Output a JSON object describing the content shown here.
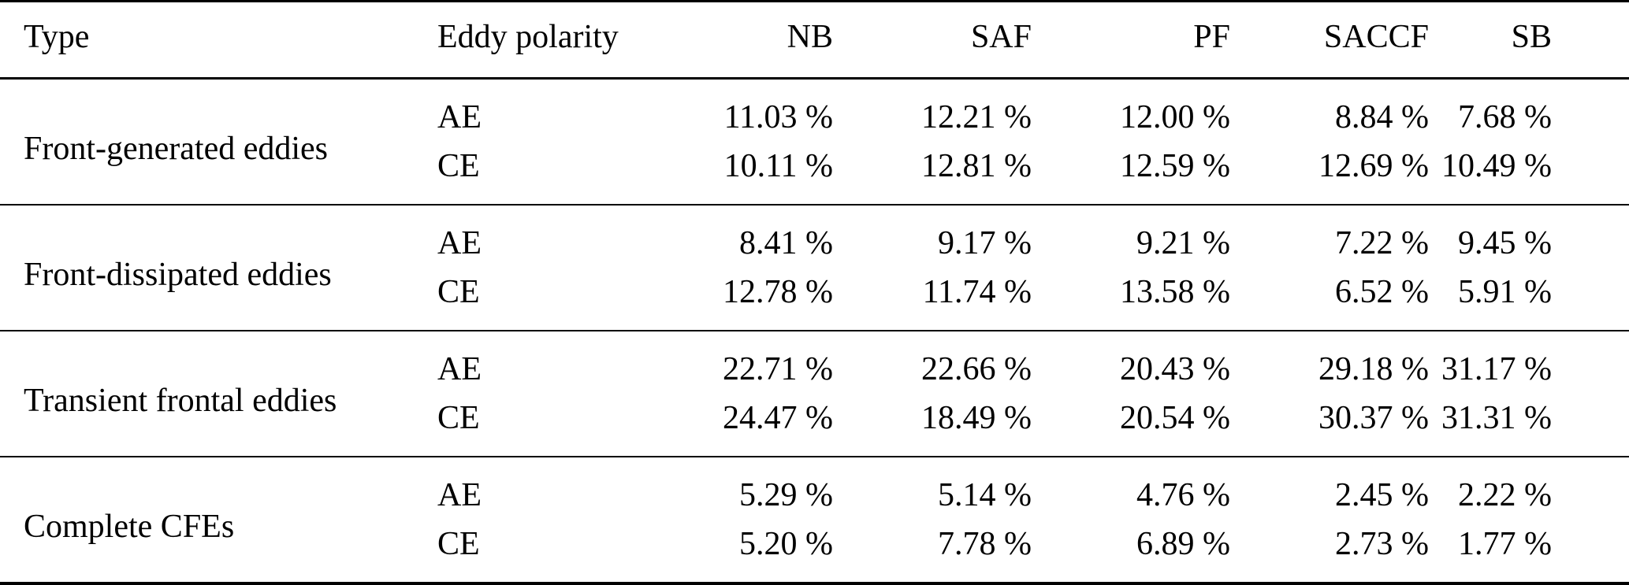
{
  "colors": {
    "text": "#000000",
    "background": "#ffffff",
    "rule": "#000000"
  },
  "table": {
    "columns": {
      "type": "Type",
      "polarity": "Eddy polarity",
      "nb": "NB",
      "saf": "SAF",
      "pf": "PF",
      "saccf": "SACCF",
      "sb": "SB"
    },
    "groups": [
      {
        "type": "Front-generated eddies",
        "rows": [
          {
            "polarity": "AE",
            "values": [
              "11.03 %",
              "12.21 %",
              "12.00 %",
              "8.84 %",
              "7.68 %"
            ]
          },
          {
            "polarity": "CE",
            "values": [
              "10.11 %",
              "12.81 %",
              "12.59 %",
              "12.69 %",
              "10.49 %"
            ]
          }
        ]
      },
      {
        "type": "Front-dissipated eddies",
        "rows": [
          {
            "polarity": "AE",
            "values": [
              "8.41 %",
              "9.17 %",
              "9.21 %",
              "7.22 %",
              "9.45 %"
            ]
          },
          {
            "polarity": "CE",
            "values": [
              "12.78 %",
              "11.74 %",
              "13.58 %",
              "6.52 %",
              "5.91 %"
            ]
          }
        ]
      },
      {
        "type": "Transient frontal eddies",
        "rows": [
          {
            "polarity": "AE",
            "values": [
              "22.71 %",
              "22.66 %",
              "20.43 %",
              "29.18 %",
              "31.17 %"
            ]
          },
          {
            "polarity": "CE",
            "values": [
              "24.47 %",
              "18.49 %",
              "20.54 %",
              "30.37 %",
              "31.31 %"
            ]
          }
        ]
      },
      {
        "type": "Complete CFEs",
        "rows": [
          {
            "polarity": "AE",
            "values": [
              "5.29 %",
              "5.14 %",
              "4.76 %",
              "2.45 %",
              "2.22 %"
            ]
          },
          {
            "polarity": "CE",
            "values": [
              "5.20 %",
              "7.78 %",
              "6.89 %",
              "2.73 %",
              "1.77 %"
            ]
          }
        ]
      }
    ]
  }
}
